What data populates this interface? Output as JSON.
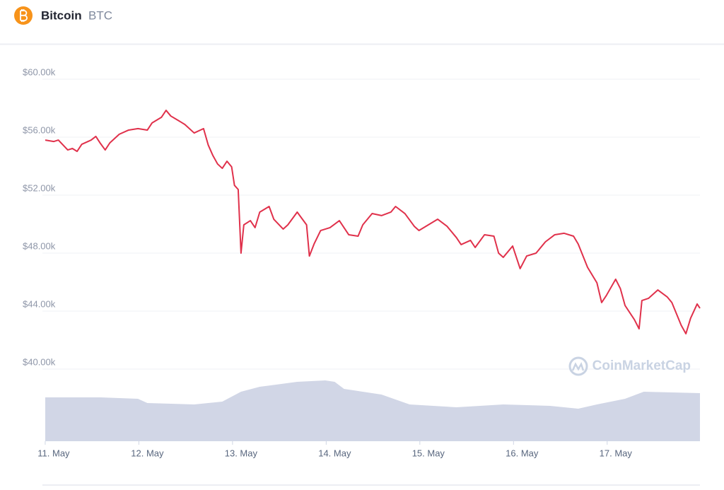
{
  "header": {
    "name": "Bitcoin",
    "symbol": "BTC"
  },
  "chart_data": {
    "type": "line",
    "watermark": "CoinMarketCap",
    "xlim": [
      -0.09,
      6.9
    ],
    "xticks": [
      {
        "value": 0,
        "label": "11. May"
      },
      {
        "value": 1,
        "label": "12. May"
      },
      {
        "value": 2,
        "label": "13. May"
      },
      {
        "value": 3,
        "label": "14. May"
      },
      {
        "value": 4,
        "label": "15. May"
      },
      {
        "value": 5,
        "label": "16. May"
      },
      {
        "value": 6,
        "label": "17. May"
      }
    ],
    "ylim": [
      40000,
      60000
    ],
    "yticks": [
      {
        "value": 40000,
        "label": "$40.00k"
      },
      {
        "value": 44000,
        "label": "$44.00k"
      },
      {
        "value": 48000,
        "label": "$48.00k"
      },
      {
        "value": 52000,
        "label": "$52.00k"
      },
      {
        "value": 56000,
        "label": "$56.00k"
      },
      {
        "value": 60000,
        "label": "$60.00k"
      }
    ],
    "grid": true,
    "series": [
      {
        "color": "#e0314b",
        "x": [
          -0.09,
          0.0,
          0.05,
          0.1,
          0.15,
          0.2,
          0.25,
          0.3,
          0.4,
          0.45,
          0.5,
          0.55,
          0.6,
          0.7,
          0.8,
          0.9,
          1.0,
          1.05,
          1.15,
          1.2,
          1.25,
          1.3,
          1.4,
          1.5,
          1.6,
          1.65,
          1.7,
          1.75,
          1.8,
          1.85,
          1.9,
          1.93,
          1.97,
          2.0,
          2.03,
          2.1,
          2.15,
          2.2,
          2.3,
          2.35,
          2.45,
          2.5,
          2.6,
          2.7,
          2.73,
          2.78,
          2.85,
          2.95,
          3.05,
          3.15,
          3.25,
          3.3,
          3.4,
          3.5,
          3.6,
          3.65,
          3.75,
          3.85,
          3.9,
          4.0,
          4.1,
          4.2,
          4.3,
          4.35,
          4.45,
          4.5,
          4.6,
          4.7,
          4.75,
          4.8,
          4.9,
          4.98,
          5.05,
          5.15,
          5.25,
          5.35,
          5.45,
          5.55,
          5.6,
          5.7,
          5.8,
          5.85,
          5.9,
          6.0,
          6.05,
          6.1,
          6.2,
          6.25,
          6.28,
          6.35,
          6.45,
          6.55,
          6.6,
          6.7,
          6.75,
          6.8,
          6.87,
          6.9
        ],
        "values": [
          55800,
          55700,
          55800,
          55460,
          55120,
          55220,
          55020,
          55510,
          55800,
          56050,
          55560,
          55120,
          55610,
          56200,
          56490,
          56590,
          56490,
          56980,
          57370,
          57850,
          57460,
          57270,
          56880,
          56290,
          56590,
          55460,
          54730,
          54150,
          53850,
          54340,
          53950,
          52680,
          52390,
          48000,
          49950,
          50240,
          49760,
          50830,
          51220,
          50340,
          49660,
          49950,
          50830,
          49950,
          47800,
          48630,
          49560,
          49760,
          50240,
          49270,
          49170,
          49950,
          50730,
          50590,
          50830,
          51220,
          50730,
          49850,
          49560,
          49950,
          50340,
          49850,
          49070,
          48590,
          48880,
          48390,
          49270,
          49170,
          48000,
          47710,
          48490,
          46930,
          47800,
          48000,
          48780,
          49270,
          49370,
          49170,
          48630,
          47020,
          45950,
          44590,
          45070,
          46200,
          45560,
          44390,
          43410,
          42780,
          44730,
          44880,
          45460,
          44980,
          44590,
          43020,
          42440,
          43510,
          44490,
          44200
        ]
      }
    ],
    "volume": {
      "color": "#d1d6e6",
      "x": [
        -0.09,
        0.5,
        0.9,
        1.0,
        1.5,
        1.8,
        2.0,
        2.2,
        2.6,
        2.9,
        3.0,
        3.1,
        3.5,
        3.8,
        4.3,
        4.8,
        5.3,
        5.6,
        5.8,
        6.1,
        6.3,
        6.9
      ],
      "values": [
        62,
        62,
        60,
        54,
        52,
        56,
        70,
        77,
        84,
        86,
        84,
        74,
        66,
        52,
        48,
        52,
        50,
        46,
        52,
        60,
        70,
        68
      ]
    }
  }
}
